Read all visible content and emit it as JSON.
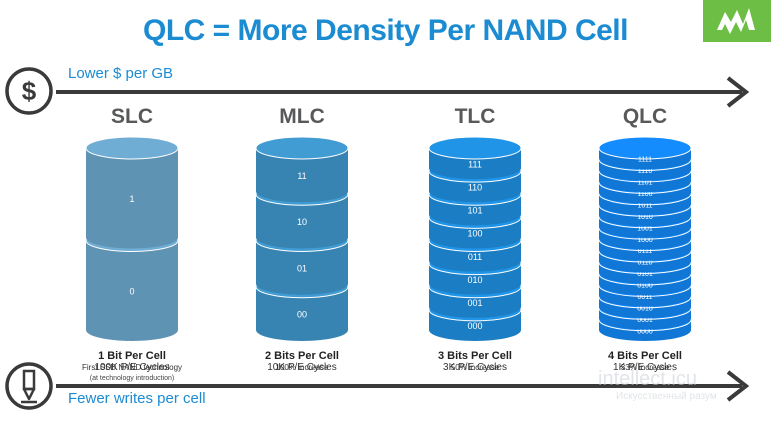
{
  "title": "QLC = More Density Per NAND Cell",
  "top_arrow": {
    "label": "Lower $ per GB",
    "icon": "dollar-icon"
  },
  "bottom_arrow": {
    "label": "Fewer writes per cell",
    "icon": "pen-icon"
  },
  "cells": [
    {
      "type": "SLC",
      "bits_label": "1 Bit Per Cell",
      "sub": "First SSD NAND technology",
      "cycles": "100K P/E Cycles",
      "cycles_note": "(at technology introduction)",
      "values": [
        "1",
        "0"
      ],
      "color": "#5f93b4"
    },
    {
      "type": "MLC",
      "bits_label": "2 Bits Per Cell",
      "sub": "100% increase",
      "cycles": "10K P/E Cycles",
      "cycles_note": "",
      "values": [
        "11",
        "10",
        "01",
        "00"
      ],
      "color": "#3784b3"
    },
    {
      "type": "TLC",
      "bits_label": "3 Bits Per Cell",
      "sub": "50% increase",
      "cycles": "3K P/E Cycles",
      "cycles_note": "",
      "values": [
        "111",
        "110",
        "101",
        "100",
        "011",
        "010",
        "001",
        "000"
      ],
      "color": "#1b7ec4"
    },
    {
      "type": "QLC",
      "bits_label": "4 Bits Per Cell",
      "sub": "33% increase",
      "cycles": "1K P/E Cycles",
      "cycles_note": "",
      "values": [
        "1111",
        "1110",
        "1101",
        "1100",
        "1011",
        "1010",
        "1001",
        "1000",
        "0111",
        "0110",
        "0101",
        "0100",
        "0011",
        "0010",
        "0001",
        "0000"
      ],
      "color": "#1177d6"
    }
  ],
  "watermark": {
    "text": "intellect.icu",
    "sub": "Искусственный разум"
  },
  "colors": {
    "accent": "#1b8bd2",
    "arrow": "#3a3a3a",
    "logo_bg": "#6cbe45"
  }
}
